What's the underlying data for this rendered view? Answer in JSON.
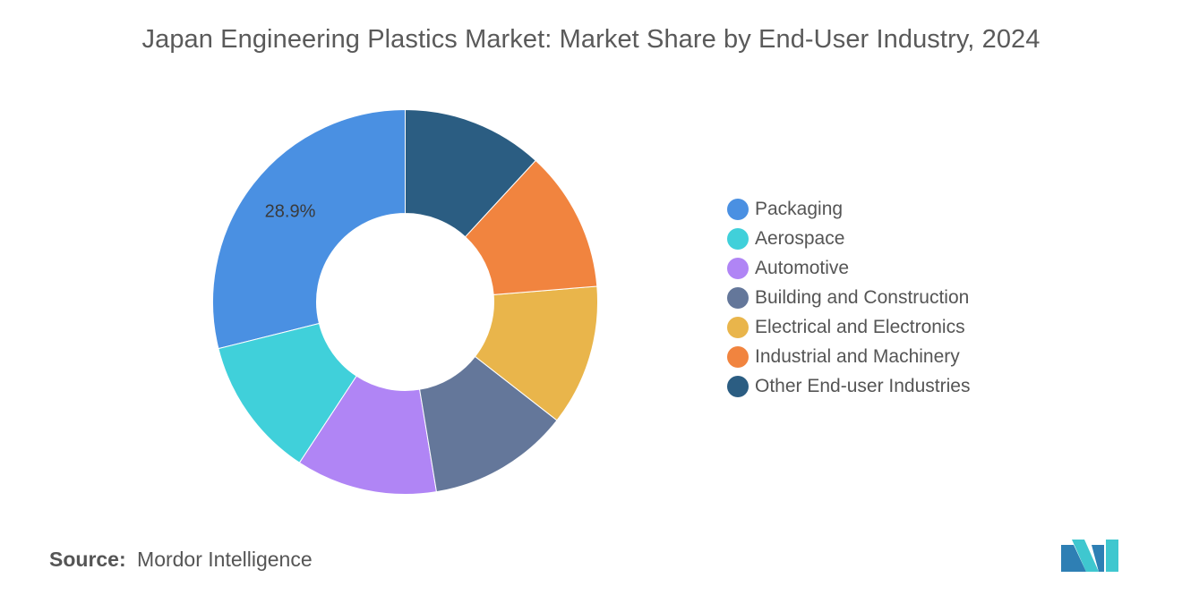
{
  "title": "Japan Engineering Plastics Market: Market Share by End-User Industry, 2024",
  "chart_data": {
    "type": "pie",
    "donut": true,
    "title": "Japan Engineering Plastics Market: Market Share by End-User Industry, 2024",
    "labels": [
      "Packaging",
      "Aerospace",
      "Automotive",
      "Building and Construction",
      "Electrical and Electronics",
      "Industrial and Machinery",
      "Other End-user Industries"
    ],
    "values": [
      28.9,
      11.85,
      11.85,
      11.85,
      11.85,
      11.85,
      11.85
    ],
    "colors": [
      "#4a90e2",
      "#40d0da",
      "#b085f5",
      "#64779a",
      "#e9b54b",
      "#f1843f",
      "#2b5d82"
    ],
    "data_labels": [
      "28.9%",
      "",
      "",
      "",
      "",
      "",
      ""
    ],
    "legend_position": "right"
  },
  "source": {
    "key": "Source:",
    "value": "Mordor Intelligence"
  }
}
